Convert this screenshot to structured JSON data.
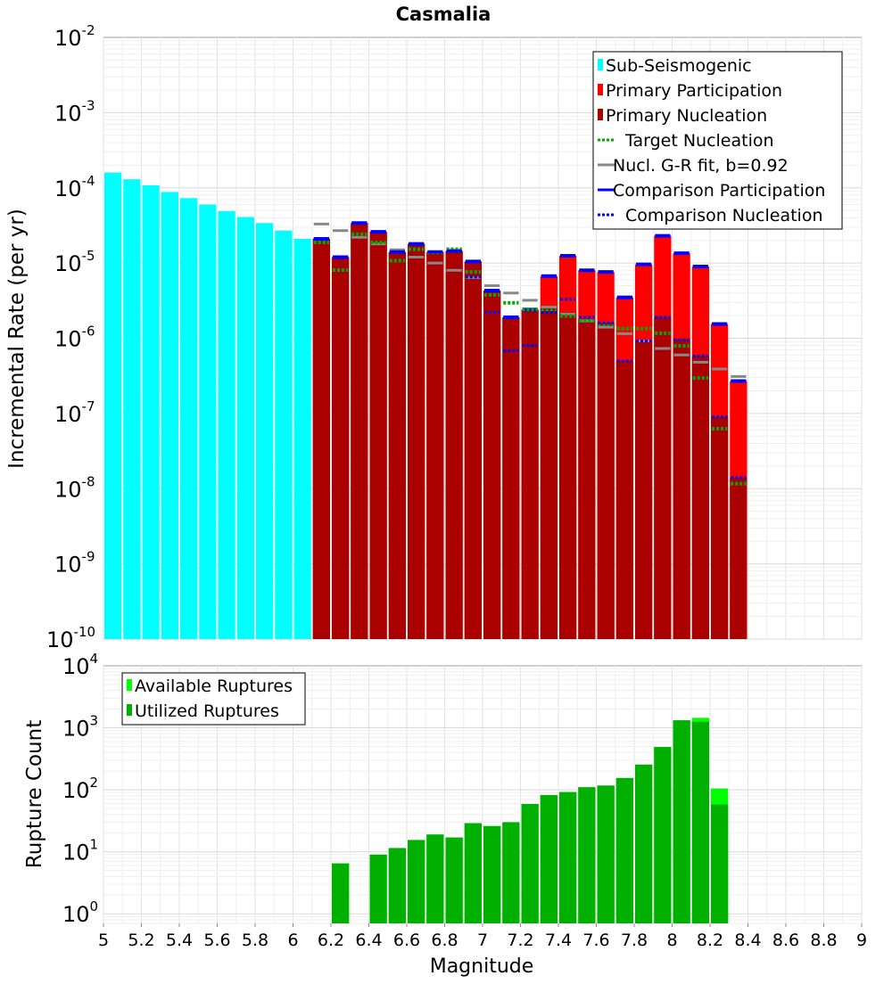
{
  "chart_data": [
    {
      "type": "bar",
      "title": "Casmalia",
      "xlabel": "",
      "ylabel": "Incremental Rate (per yr)",
      "yscale": "log",
      "xlim": [
        5,
        9
      ],
      "ylim": [
        1e-10,
        0.01
      ],
      "y_ticks": [
        {
          "base": "10",
          "exp": "-10",
          "value": 1e-10
        },
        {
          "base": "10",
          "exp": "-9",
          "value": 1e-09
        },
        {
          "base": "10",
          "exp": "-8",
          "value": 1e-08
        },
        {
          "base": "10",
          "exp": "-7",
          "value": 1e-07
        },
        {
          "base": "10",
          "exp": "-6",
          "value": 1e-06
        },
        {
          "base": "10",
          "exp": "-5",
          "value": 1e-05
        },
        {
          "base": "10",
          "exp": "-4",
          "value": 0.0001
        },
        {
          "base": "10",
          "exp": "-3",
          "value": 0.001
        },
        {
          "base": "10",
          "exp": "-2",
          "value": 0.01
        }
      ],
      "grid": true,
      "legend_position": "top-right",
      "legend": [
        {
          "label": "Sub-Seismogenic",
          "style": "bar",
          "color": "#00ffff"
        },
        {
          "label": "Primary Participation",
          "style": "bar",
          "color": "#ff0000"
        },
        {
          "label": "Primary Nucleation",
          "style": "bar",
          "color": "#aa0000"
        },
        {
          "label": "Target Nucleation",
          "style": "dotted",
          "color": "#00aa00"
        },
        {
          "label": "Nucl. G-R fit, b=0.92",
          "style": "solid",
          "color": "#888888"
        },
        {
          "label": "Comparison Participation",
          "style": "solid",
          "color": "#0000ff"
        },
        {
          "label": "Comparison Nucleation",
          "style": "dotted",
          "color": "#0000ff"
        }
      ],
      "series": [
        {
          "name": "Sub-Seismogenic",
          "color": "#00ffff",
          "x": [
            5.05,
            5.15,
            5.25,
            5.35,
            5.45,
            5.55,
            5.65,
            5.75,
            5.85,
            5.95,
            6.05
          ],
          "values": [
            0.00016,
            0.00013,
            0.000108,
            8.8e-05,
            7.3e-05,
            6e-05,
            4.9e-05,
            4.1e-05,
            3.4e-05,
            2.7e-05,
            2.1e-05
          ]
        },
        {
          "name": "Primary Participation",
          "color": "#ff0000",
          "x": [
            6.15,
            6.25,
            6.35,
            6.45,
            6.55,
            6.65,
            6.75,
            6.85,
            6.95,
            7.05,
            7.15,
            7.25,
            7.35,
            7.45,
            7.55,
            7.65,
            7.75,
            7.85,
            7.95,
            8.05,
            8.15,
            8.25,
            8.35
          ],
          "values": [
            2.1e-05,
            1.2e-05,
            3.4e-05,
            2.6e-05,
            1.4e-05,
            1.8e-05,
            1.4e-05,
            1.45e-05,
            1.05e-05,
            4.3e-06,
            1.9e-06,
            2.4e-06,
            6.7e-06,
            1.25e-05,
            8e-06,
            7.6e-06,
            3.5e-06,
            9.6e-06,
            2.3e-05,
            1.35e-05,
            9e-06,
            1.55e-06,
            2.7e-07
          ]
        },
        {
          "name": "Primary Nucleation",
          "color": "#aa0000",
          "x": [
            6.15,
            6.25,
            6.35,
            6.45,
            6.55,
            6.65,
            6.75,
            6.85,
            6.95,
            7.05,
            7.15,
            7.25,
            7.35,
            7.45,
            7.55,
            7.65,
            7.75,
            7.85,
            7.95,
            8.05,
            8.15,
            8.25,
            8.35
          ],
          "values": [
            2.1e-05,
            1.2e-05,
            3.4e-05,
            2.6e-05,
            1.4e-05,
            1.8e-05,
            1.4e-05,
            1.45e-05,
            1.05e-05,
            4.3e-06,
            1.9e-06,
            2.4e-06,
            2.5e-06,
            2.2e-06,
            1.8e-06,
            1.6e-06,
            5e-07,
            9.5e-07,
            1.9e-06,
            9.8e-07,
            5.8e-07,
            9e-08,
            1.4e-08
          ]
        },
        {
          "name": "Target Nucleation",
          "color": "#00aa00",
          "x": [
            6.15,
            6.25,
            6.35,
            6.45,
            6.55,
            6.65,
            6.75,
            6.85,
            6.95,
            7.05,
            7.15,
            7.25,
            7.35,
            7.45,
            7.55,
            7.65,
            7.75,
            7.85,
            7.95,
            8.05,
            8.15,
            8.25,
            8.35
          ],
          "values": [
            2.1e-05,
            9e-06,
            2.7e-05,
            2.1e-05,
            1.2e-05,
            1.7e-05,
            1.55e-05,
            1.7e-05,
            8.5e-06,
            4.2e-06,
            3.3e-06,
            2.7e-06,
            2.6e-06,
            2.2e-06,
            1.9e-06,
            1.7e-06,
            1.5e-06,
            1.5e-06,
            1.3e-06,
            8.8e-07,
            3.3e-07,
            7e-08,
            1.3e-08
          ]
        },
        {
          "name": "Nucl. G-R fit, b=0.92",
          "color": "#888888",
          "x": [
            6.15,
            6.25,
            6.35,
            6.45,
            6.55,
            6.65,
            6.75,
            6.85,
            6.95,
            7.05,
            7.15,
            7.25,
            7.35,
            7.45,
            7.55,
            7.65,
            7.75,
            7.85,
            7.95,
            8.05,
            8.15,
            8.25,
            8.35
          ],
          "values": [
            3.3e-05,
            2.7e-05,
            2.2e-05,
            1.8e-05,
            1.5e-05,
            1.2e-05,
            1e-05,
            8e-06,
            6.4e-06,
            5e-06,
            4e-06,
            3.2e-06,
            2.6e-06,
            2.1e-06,
            1.7e-06,
            1.4e-06,
            1.15e-06,
            9.2e-07,
            7.3e-07,
            6e-07,
            4.8e-07,
            3.9e-07,
            3.1e-07
          ]
        },
        {
          "name": "Comparison Participation",
          "color": "#0000ff",
          "x": [
            6.15,
            6.25,
            6.35,
            6.45,
            6.55,
            6.65,
            6.75,
            6.85,
            6.95,
            7.05,
            7.15,
            7.25,
            7.35,
            7.45,
            7.55,
            7.65,
            7.75,
            7.85,
            7.95,
            8.05,
            8.15,
            8.25,
            8.35
          ],
          "values": [
            2.1e-05,
            1.2e-05,
            3.4e-05,
            2.6e-05,
            1.4e-05,
            1.8e-05,
            1.4e-05,
            1.45e-05,
            1.05e-05,
            4.3e-06,
            1.9e-06,
            2.4e-06,
            6.7e-06,
            1.25e-05,
            8e-06,
            7.6e-06,
            3.5e-06,
            9.6e-06,
            2.3e-05,
            1.35e-05,
            9e-06,
            1.55e-06,
            2.7e-07
          ]
        },
        {
          "name": "Comparison Nucleation",
          "color": "#0000ff",
          "x": [
            6.15,
            6.25,
            6.35,
            6.45,
            6.55,
            6.65,
            6.75,
            6.85,
            6.95,
            7.05,
            7.15,
            7.25,
            7.35,
            7.45,
            7.55,
            7.65,
            7.75,
            7.85,
            7.95,
            8.05,
            8.15,
            8.25,
            8.35
          ],
          "values": [
            2.1e-05,
            1.2e-05,
            3.4e-05,
            2.6e-05,
            1.4e-05,
            1.8e-05,
            1.4e-05,
            1.45e-05,
            6.5e-06,
            2.2e-06,
            6.8e-07,
            8e-07,
            2.2e-06,
            3.3e-06,
            1.9e-06,
            1.6e-06,
            5e-07,
            9.2e-07,
            1.9e-06,
            9.5e-07,
            5.8e-07,
            9e-08,
            1.4e-08
          ]
        }
      ]
    },
    {
      "type": "bar",
      "title": "",
      "xlabel": "Magnitude",
      "ylabel": "Rupture Count",
      "yscale": "log",
      "xlim": [
        5,
        9
      ],
      "ylim": [
        0.7,
        10000
      ],
      "x_ticks": [
        "5",
        "5.2",
        "5.4",
        "5.6",
        "5.8",
        "6",
        "6.2",
        "6.4",
        "6.6",
        "6.8",
        "7",
        "7.2",
        "7.4",
        "7.6",
        "7.8",
        "8",
        "8.2",
        "8.4",
        "8.6",
        "8.8",
        "9"
      ],
      "y_ticks": [
        {
          "base": "10",
          "exp": "0",
          "value": 1
        },
        {
          "base": "10",
          "exp": "1",
          "value": 10
        },
        {
          "base": "10",
          "exp": "2",
          "value": 100
        },
        {
          "base": "10",
          "exp": "3",
          "value": 1000
        },
        {
          "base": "10",
          "exp": "4",
          "value": 10000
        }
      ],
      "grid": true,
      "legend_position": "top-left",
      "legend": [
        {
          "label": "Available Ruptures",
          "style": "bar",
          "color": "#00ff00"
        },
        {
          "label": "Utilized Ruptures",
          "style": "bar",
          "color": "#00b000"
        }
      ],
      "series": [
        {
          "name": "Available Ruptures",
          "color": "#00ff00",
          "x": [
            6.25,
            6.45,
            6.55,
            6.65,
            6.75,
            6.85,
            6.95,
            7.05,
            7.15,
            7.25,
            7.35,
            7.45,
            7.55,
            7.65,
            7.75,
            7.85,
            7.95,
            8.05,
            8.15,
            8.25
          ],
          "values": [
            6.5,
            9,
            11.5,
            15.5,
            19,
            17,
            29,
            26,
            30,
            59,
            82,
            92,
            110,
            117,
            155,
            255,
            490,
            1320,
            1450,
            105
          ]
        },
        {
          "name": "Utilized Ruptures",
          "color": "#00b000",
          "x": [
            6.25,
            6.45,
            6.55,
            6.65,
            6.75,
            6.85,
            6.95,
            7.05,
            7.15,
            7.25,
            7.35,
            7.45,
            7.55,
            7.65,
            7.75,
            7.85,
            7.95,
            8.05,
            8.15,
            8.25
          ],
          "values": [
            6.5,
            9,
            11.5,
            15.5,
            19,
            17,
            29,
            26,
            30,
            59,
            82,
            92,
            110,
            117,
            155,
            255,
            490,
            1320,
            1250,
            58
          ]
        }
      ]
    }
  ]
}
